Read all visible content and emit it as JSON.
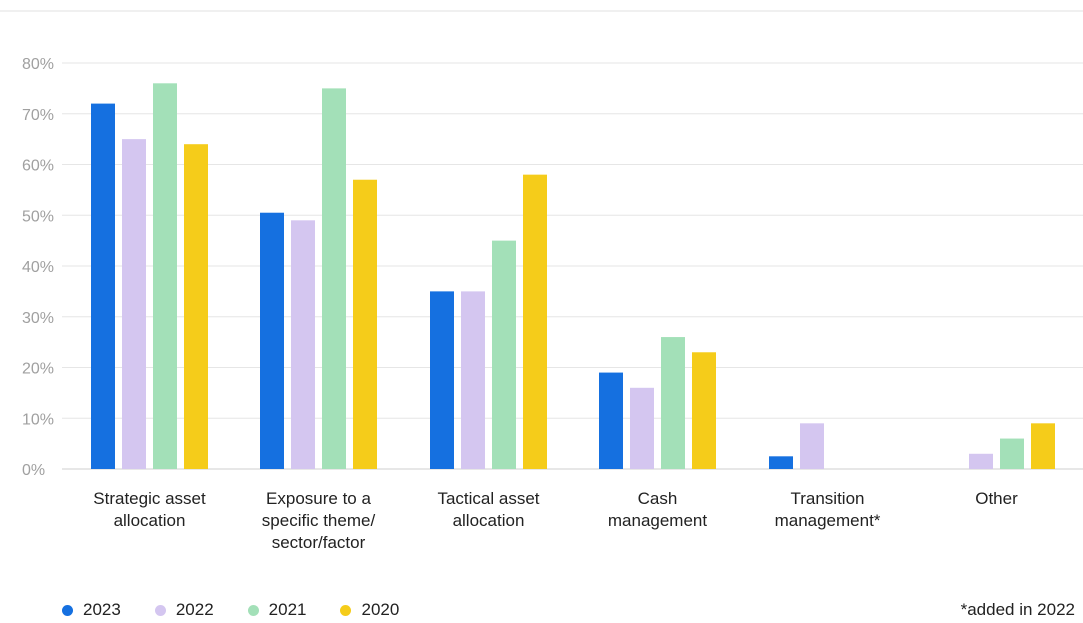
{
  "chart_data": {
    "type": "bar",
    "categories": [
      [
        "Strategic asset",
        "allocation"
      ],
      [
        "Exposure to a",
        "specific theme/",
        "sector/factor"
      ],
      [
        "Tactical asset",
        "allocation"
      ],
      [
        "Cash",
        "management"
      ],
      [
        "Transition",
        "management*"
      ],
      [
        "Other"
      ]
    ],
    "series": [
      {
        "name": "2023",
        "color": "#1570e0",
        "values": [
          72,
          50.5,
          35,
          19,
          2.5,
          null
        ]
      },
      {
        "name": "2022",
        "color": "#d4c6f0",
        "values": [
          65,
          49,
          35,
          16,
          9,
          3
        ]
      },
      {
        "name": "2021",
        "color": "#a3e0b8",
        "values": [
          76,
          75,
          45,
          26,
          null,
          6
        ]
      },
      {
        "name": "2020",
        "color": "#f5cc1a",
        "values": [
          64,
          57,
          58,
          23,
          null,
          9
        ]
      }
    ],
    "yticks": [
      "0%",
      "10%",
      "20%",
      "30%",
      "40%",
      "50%",
      "60%",
      "70%",
      "80%"
    ],
    "ylim": [
      0,
      80
    ],
    "grid": true,
    "legend_position": "bottom-left"
  },
  "footnote": "*added in 2022"
}
